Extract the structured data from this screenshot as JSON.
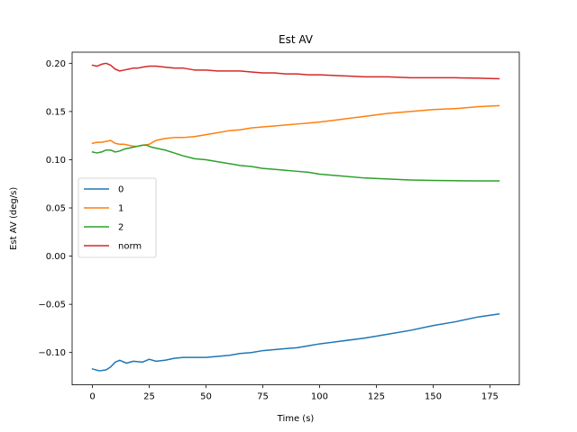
{
  "chart_data": {
    "type": "line",
    "title": "Est AV",
    "xlabel": "Time (s)",
    "ylabel": "Est AV (deg/s)",
    "xlim": [
      -8.95,
      187.95
    ],
    "ylim": [
      -0.1335,
      0.2115
    ],
    "xticks": [
      0,
      25,
      50,
      75,
      100,
      125,
      150,
      175
    ],
    "xtick_labels": [
      "0",
      "25",
      "50",
      "75",
      "100",
      "125",
      "150",
      "175"
    ],
    "yticks": [
      -0.1,
      -0.05,
      0.0,
      0.05,
      0.1,
      0.15,
      0.2
    ],
    "ytick_labels": [
      "−0.10",
      "−0.05",
      "0.00",
      "0.05",
      "0.10",
      "0.15",
      "0.20"
    ],
    "grid": false,
    "legend_position": "center-left",
    "series": [
      {
        "name": "0",
        "color": "#1f77b4",
        "x": [
          0,
          3,
          6,
          8,
          10,
          12,
          15,
          18,
          22,
          25,
          28,
          32,
          36,
          40,
          45,
          50,
          55,
          60,
          65,
          70,
          75,
          80,
          85,
          90,
          95,
          100,
          110,
          120,
          130,
          140,
          150,
          160,
          170,
          179
        ],
        "y": [
          -0.117,
          -0.119,
          -0.118,
          -0.115,
          -0.11,
          -0.108,
          -0.111,
          -0.109,
          -0.11,
          -0.107,
          -0.109,
          -0.108,
          -0.106,
          -0.105,
          -0.105,
          -0.105,
          -0.104,
          -0.103,
          -0.101,
          -0.1,
          -0.098,
          -0.097,
          -0.096,
          -0.095,
          -0.093,
          -0.091,
          -0.088,
          -0.085,
          -0.081,
          -0.077,
          -0.072,
          -0.068,
          -0.063,
          -0.06
        ]
      },
      {
        "name": "1",
        "color": "#ff7f0e",
        "x": [
          0,
          2,
          4,
          6,
          8,
          10,
          12,
          14,
          16,
          18,
          20,
          22,
          25,
          28,
          32,
          36,
          40,
          45,
          50,
          55,
          60,
          65,
          70,
          75,
          80,
          85,
          90,
          95,
          100,
          110,
          120,
          130,
          140,
          150,
          160,
          170,
          179
        ],
        "y": [
          0.117,
          0.118,
          0.118,
          0.119,
          0.12,
          0.117,
          0.116,
          0.116,
          0.115,
          0.114,
          0.114,
          0.115,
          0.116,
          0.12,
          0.122,
          0.123,
          0.123,
          0.124,
          0.126,
          0.128,
          0.13,
          0.131,
          0.133,
          0.134,
          0.135,
          0.136,
          0.137,
          0.138,
          0.139,
          0.142,
          0.145,
          0.148,
          0.15,
          0.152,
          0.153,
          0.155,
          0.156
        ]
      },
      {
        "name": "2",
        "color": "#2ca02c",
        "x": [
          0,
          2,
          4,
          6,
          8,
          10,
          12,
          14,
          16,
          18,
          20,
          22,
          24,
          26,
          28,
          32,
          36,
          40,
          45,
          50,
          55,
          60,
          65,
          70,
          75,
          80,
          85,
          90,
          95,
          100,
          110,
          120,
          130,
          140,
          150,
          160,
          170,
          179
        ],
        "y": [
          0.108,
          0.107,
          0.108,
          0.11,
          0.11,
          0.108,
          0.109,
          0.111,
          0.112,
          0.113,
          0.114,
          0.115,
          0.115,
          0.113,
          0.112,
          0.11,
          0.107,
          0.104,
          0.101,
          0.1,
          0.098,
          0.096,
          0.094,
          0.093,
          0.091,
          0.09,
          0.089,
          0.088,
          0.087,
          0.085,
          0.083,
          0.081,
          0.08,
          0.079,
          0.0785,
          0.0782,
          0.078,
          0.078
        ]
      },
      {
        "name": "norm",
        "color": "#d62728",
        "x": [
          0,
          2,
          4,
          6,
          8,
          10,
          12,
          14,
          16,
          18,
          20,
          22,
          25,
          28,
          32,
          36,
          40,
          45,
          50,
          55,
          60,
          65,
          70,
          75,
          80,
          85,
          90,
          95,
          100,
          110,
          120,
          130,
          140,
          150,
          160,
          170,
          179
        ],
        "y": [
          0.198,
          0.197,
          0.199,
          0.2,
          0.198,
          0.194,
          0.192,
          0.193,
          0.194,
          0.195,
          0.195,
          0.196,
          0.197,
          0.197,
          0.196,
          0.195,
          0.195,
          0.193,
          0.193,
          0.192,
          0.192,
          0.192,
          0.191,
          0.19,
          0.19,
          0.189,
          0.189,
          0.188,
          0.188,
          0.187,
          0.186,
          0.186,
          0.185,
          0.185,
          0.185,
          0.1845,
          0.184
        ]
      }
    ]
  }
}
